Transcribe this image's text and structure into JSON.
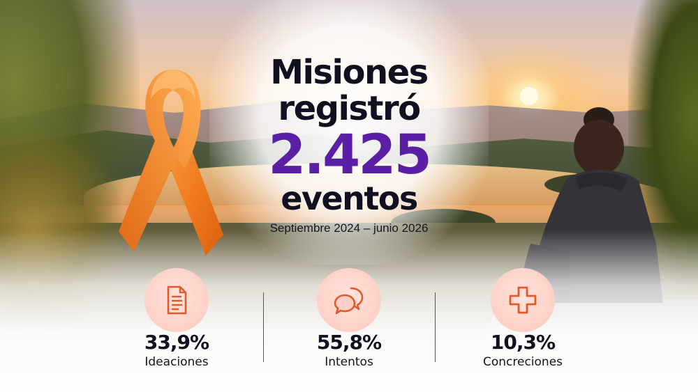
{
  "headline": {
    "line1": "Misiones",
    "line2": "registró",
    "number": "2.425",
    "line3": "eventos",
    "dates": "Septiembre 2024 – junio 2026"
  },
  "stats": [
    {
      "value": "33,9%",
      "label": "Ideaciones",
      "icon": "document-icon"
    },
    {
      "value": "55,8%",
      "label": "Intentos",
      "icon": "chat-bubbles-icon"
    },
    {
      "value": "10,3%",
      "label": "Concreciones",
      "icon": "medical-cross-icon"
    }
  ],
  "colors": {
    "accent_purple": "#5b1fa6",
    "icon_orange": "#e35a2a",
    "ribbon_orange": "#f07a1e",
    "text_dark": "#101020"
  }
}
